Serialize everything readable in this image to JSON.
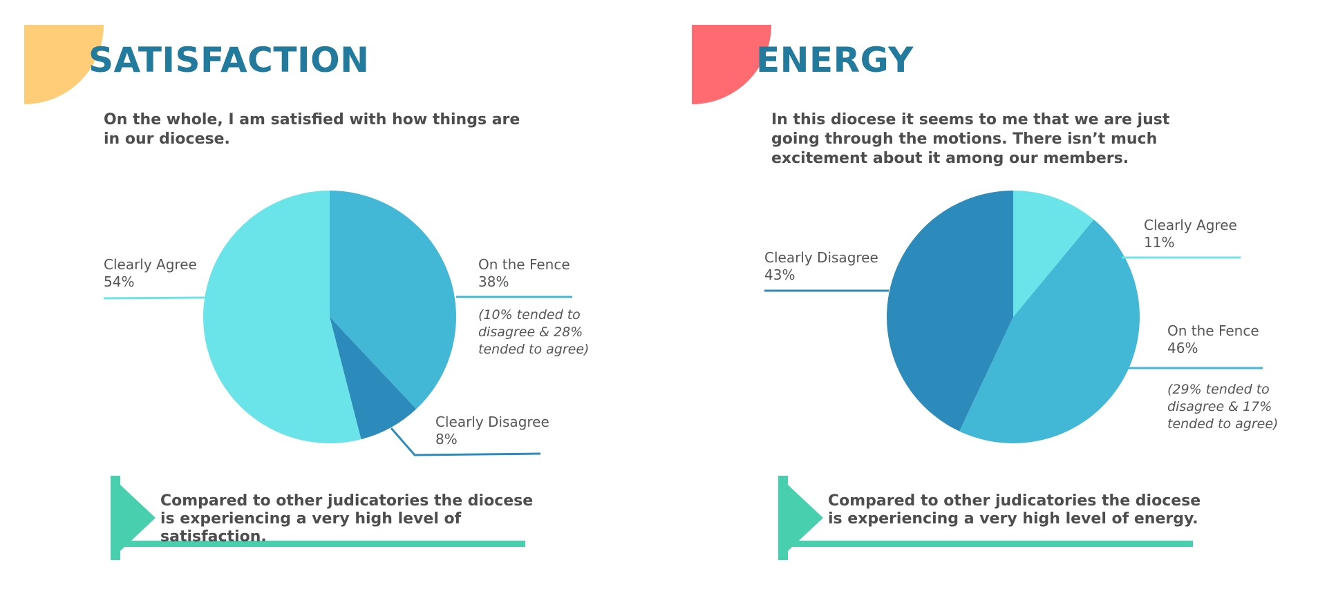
{
  "colors": {
    "left_corner": "#ffcc77",
    "right_corner": "#ff6b70",
    "title": "#227a9c",
    "callout": "#48cfad"
  },
  "chart_data": [
    {
      "type": "pie",
      "title": "SATISFACTION",
      "subtitle": "On the whole, I am satisfied with how things are in our diocese.",
      "slices": [
        {
          "label": "On the Fence",
          "value": 38,
          "value_label": "38%",
          "note": "(10% tended to disagree & 28% tended to agree)",
          "color": "#42b7d6"
        },
        {
          "label": "Clearly Disagree",
          "value": 8,
          "value_label": "8%",
          "note": "",
          "color": "#2d8bbb"
        },
        {
          "label": "Clearly Agree",
          "value": 54,
          "value_label": "54%",
          "note": "",
          "color": "#6ae4e8"
        }
      ],
      "callout": "Compared to other judicatories the diocese is experiencing a very high level of satisfaction."
    },
    {
      "type": "pie",
      "title": "ENERGY",
      "subtitle": "In this diocese it seems to me that we are just going through the motions. There isn’t much excitement about it among our members.",
      "slices": [
        {
          "label": "Clearly Agree",
          "value": 11,
          "value_label": "11%",
          "note": "",
          "color": "#6ae4e8"
        },
        {
          "label": "On the Fence",
          "value": 46,
          "value_label": "46%",
          "note": "(29% tended to disagree & 17% tended to agree)",
          "color": "#42b7d6"
        },
        {
          "label": "Clearly Disagree",
          "value": 43,
          "value_label": "43%",
          "note": "",
          "color": "#2d8bbb"
        }
      ],
      "callout": "Compared to other judicatories the diocese is experiencing a very high level of energy."
    }
  ]
}
